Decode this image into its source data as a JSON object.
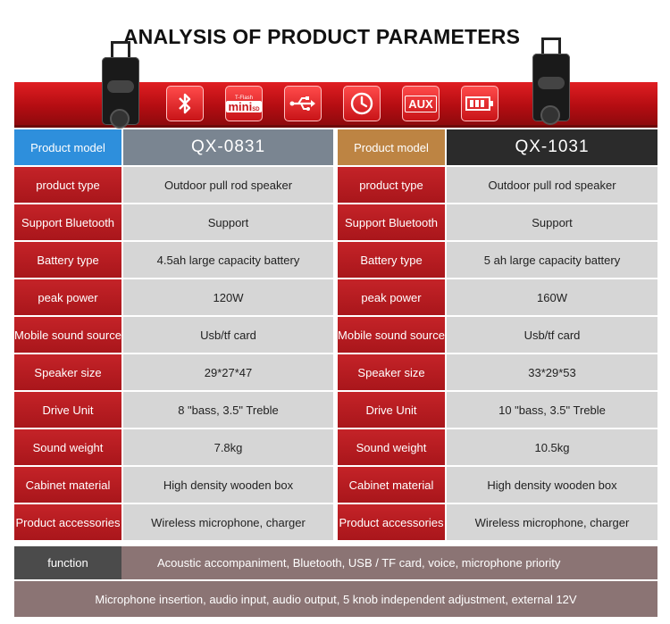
{
  "title": "ANALYSIS OF PRODUCT PARAMETERS",
  "icons": [
    "bluetooth-icon",
    "tf-card-icon",
    "usb-icon",
    "clock-icon",
    "aux-icon",
    "battery-icon"
  ],
  "icon_text": {
    "tf_card_top": "T-Flash",
    "tf_card_main": "mini",
    "tf_card_sub": "SD",
    "aux": "AUX"
  },
  "colors": {
    "red": "#c42328",
    "blue": "#2e8fdc",
    "gold": "#bd8443",
    "dark": "#2b2b2b",
    "grey": "#d6d6d6",
    "mauve": "#8b7474"
  },
  "header": {
    "left_label": "Product model",
    "left_model": "QX-0831",
    "right_label": "Product model",
    "right_model": "QX-1031"
  },
  "rows": [
    {
      "label": "product type",
      "left": "Outdoor pull rod speaker",
      "right": "Outdoor pull rod speaker"
    },
    {
      "label": "Support Bluetooth",
      "left": "Support",
      "right": "Support"
    },
    {
      "label": "Battery type",
      "left": "4.5ah large capacity battery",
      "right": "5 ah large capacity battery"
    },
    {
      "label": "peak power",
      "left": "120W",
      "right": "160W"
    },
    {
      "label": "Mobile sound source",
      "left": "Usb/tf card",
      "right": "Usb/tf card"
    },
    {
      "label": "Speaker size",
      "left": "29*27*47",
      "right": "33*29*53"
    },
    {
      "label": "Drive Unit",
      "left": "8 \"bass, 3.5\" Treble",
      "right": "10 \"bass, 3.5\" Treble"
    },
    {
      "label": "Sound weight",
      "left": "7.8kg",
      "right": "10.5kg"
    },
    {
      "label": "Cabinet material",
      "left": "High density wooden box",
      "right": "High density wooden box"
    },
    {
      "label": "Product accessories",
      "left": "Wireless microphone, charger",
      "right": "Wireless microphone, charger"
    }
  ],
  "function": {
    "label": "function",
    "line1": "Acoustic accompaniment, Bluetooth, USB / TF card, voice, microphone priority",
    "line2": "Microphone insertion, audio input, audio output, 5 knob independent adjustment, external 12V"
  }
}
